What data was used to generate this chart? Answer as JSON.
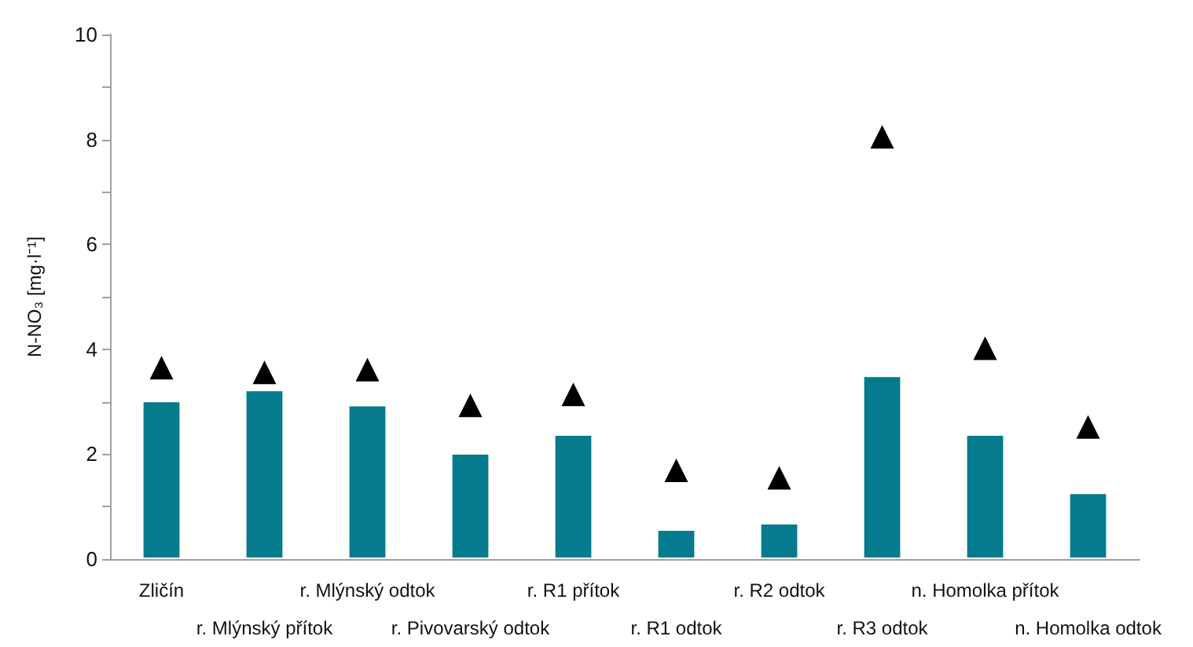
{
  "chart_data": {
    "type": "bar",
    "ylabel": "N-NO₃ [mg·l⁻¹]",
    "categories": [
      "Zličín",
      "r. Mlýnský přítok",
      "r. Mlýnský odtok",
      "r. Pivovarský odtok",
      "r. R1 přítok",
      "r. R1 odtok",
      "r. R2 odtok",
      "r. R3 odtok",
      "n. Homolka přítok",
      "n. Homolka odtok"
    ],
    "series": [
      {
        "color": "#057b8d",
        "values": [
          3.02,
          3.23,
          2.94,
          2.02,
          2.38,
          0.57,
          0.69,
          3.5,
          2.38,
          1.27
        ]
      },
      {
        "type": "scatter",
        "color": "#000000",
        "x": [
          "Zličín",
          "r. Mlýnský přítok",
          "r. Mlýnský odtok",
          "r. Pivovarský odtok",
          "r. R1 přítok",
          "r. R1 odtok",
          "r. R2 odtok",
          "r. R3 odtok",
          "n. Homolka přítok",
          "n. Homolka odtok"
        ],
        "values": [
          3.65,
          3.56,
          3.61,
          2.93,
          3.14,
          1.69,
          1.55,
          8.05,
          4.02,
          2.52
        ]
      }
    ],
    "marker": "triangle",
    "ylim": [
      0,
      10
    ],
    "yticks": [
      0,
      {
        "value": 1,
        "label": null
      },
      2,
      {
        "value": 3,
        "label": null
      },
      4,
      {
        "value": 5,
        "label": null
      },
      6,
      {
        "value": 7,
        "label": null
      },
      8,
      {
        "value": 9,
        "label": null
      },
      10
    ],
    "grid": false
  }
}
